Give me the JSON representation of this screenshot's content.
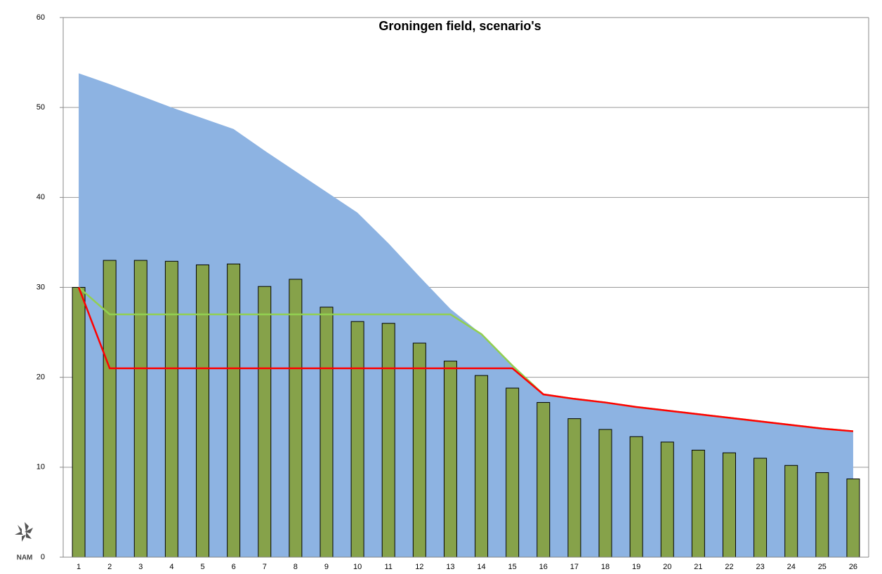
{
  "chart_data": {
    "type": "combo",
    "title": "Groningen field, scenario's",
    "logo_text": "NAM",
    "categories": [
      "1",
      "2",
      "3",
      "4",
      "5",
      "6",
      "7",
      "8",
      "9",
      "10",
      "11",
      "12",
      "13",
      "14",
      "15",
      "16",
      "17",
      "18",
      "19",
      "20",
      "21",
      "22",
      "23",
      "24",
      "25",
      "26"
    ],
    "ylim": [
      0,
      60
    ],
    "yticks": [
      0,
      10,
      20,
      30,
      40,
      50,
      60
    ],
    "grid": true,
    "series": [
      {
        "type": "area",
        "color": "#8db3e2",
        "values": [
          53.8,
          52.6,
          51.3,
          50.0,
          48.8,
          47.6,
          45.2,
          42.9,
          40.6,
          38.3,
          34.9,
          31.2,
          27.6,
          24.8,
          21.2,
          18.1,
          17.6,
          17.2,
          16.7,
          16.3,
          15.9,
          15.5,
          15.1,
          14.7,
          14.3,
          14.0
        ]
      },
      {
        "type": "bar",
        "color": "#86a24a",
        "values": [
          30,
          33,
          33,
          32.9,
          32.5,
          32.6,
          30.1,
          30.9,
          27.8,
          26.2,
          26,
          23.8,
          21.8,
          20.2,
          18.8,
          17.2,
          15.4,
          14.2,
          13.4,
          12.8,
          11.9,
          11.6,
          11,
          10.2,
          9.4,
          8.7
        ]
      },
      {
        "type": "line",
        "color": "#92d050",
        "values": [
          30,
          27,
          27,
          27,
          27,
          27,
          27,
          27,
          27,
          27,
          27,
          27,
          27,
          24.8,
          21.3,
          18.1,
          17.6,
          17.2,
          16.7,
          16.3,
          15.9,
          15.5,
          15.1,
          14.7,
          14.3,
          14.0
        ]
      },
      {
        "type": "line",
        "color": "#ff0000",
        "values": [
          30,
          21,
          21,
          21,
          21,
          21,
          21,
          21,
          21,
          21,
          21,
          21,
          21,
          21,
          21,
          18.1,
          17.6,
          17.2,
          16.7,
          16.3,
          15.9,
          15.5,
          15.1,
          14.7,
          14.3,
          14.0
        ]
      }
    ]
  }
}
